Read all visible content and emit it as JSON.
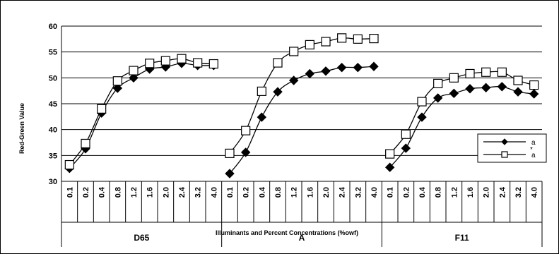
{
  "chart_data": {
    "type": "line",
    "title": "",
    "xlabel": "Illuminants and Percent Concentrations (%owf)",
    "ylabel": "Red-Green Value",
    "ylim": [
      30,
      60
    ],
    "yticks": [
      30,
      35,
      40,
      45,
      50,
      55,
      60
    ],
    "grid": "horizontal",
    "legend_position": "right",
    "groups": [
      "D65",
      "A",
      "F11"
    ],
    "concentrations": [
      "0.1",
      "0.2",
      "0.4",
      "0.8",
      "1.2",
      "1.6",
      "2.0",
      "2.4",
      "3.2",
      "4.0"
    ],
    "series": [
      {
        "name": "a",
        "legend_superscript": "*",
        "marker": "diamond-filled",
        "values": {
          "D65": [
            32.5,
            36.3,
            43.2,
            48.0,
            50.0,
            51.7,
            52.1,
            52.8,
            52.4,
            52.4
          ],
          "A": [
            31.5,
            35.6,
            42.4,
            47.3,
            49.5,
            50.8,
            51.3,
            52.0,
            52.0,
            52.2
          ],
          "F11": [
            32.7,
            36.4,
            42.4,
            46.1,
            47.0,
            47.9,
            48.1,
            48.3,
            47.3,
            46.9
          ]
        }
      },
      {
        "name": "a",
        "marker": "square-open",
        "values": {
          "D65": [
            33.2,
            37.3,
            44.0,
            49.4,
            51.4,
            52.8,
            53.3,
            53.7,
            52.9,
            52.7
          ],
          "A": [
            35.4,
            39.8,
            47.4,
            52.9,
            55.1,
            56.4,
            57.0,
            57.7,
            57.5,
            57.6
          ],
          "F11": [
            35.3,
            39.1,
            45.4,
            48.9,
            50.0,
            50.8,
            51.1,
            51.1,
            49.5,
            48.6
          ]
        }
      }
    ]
  }
}
